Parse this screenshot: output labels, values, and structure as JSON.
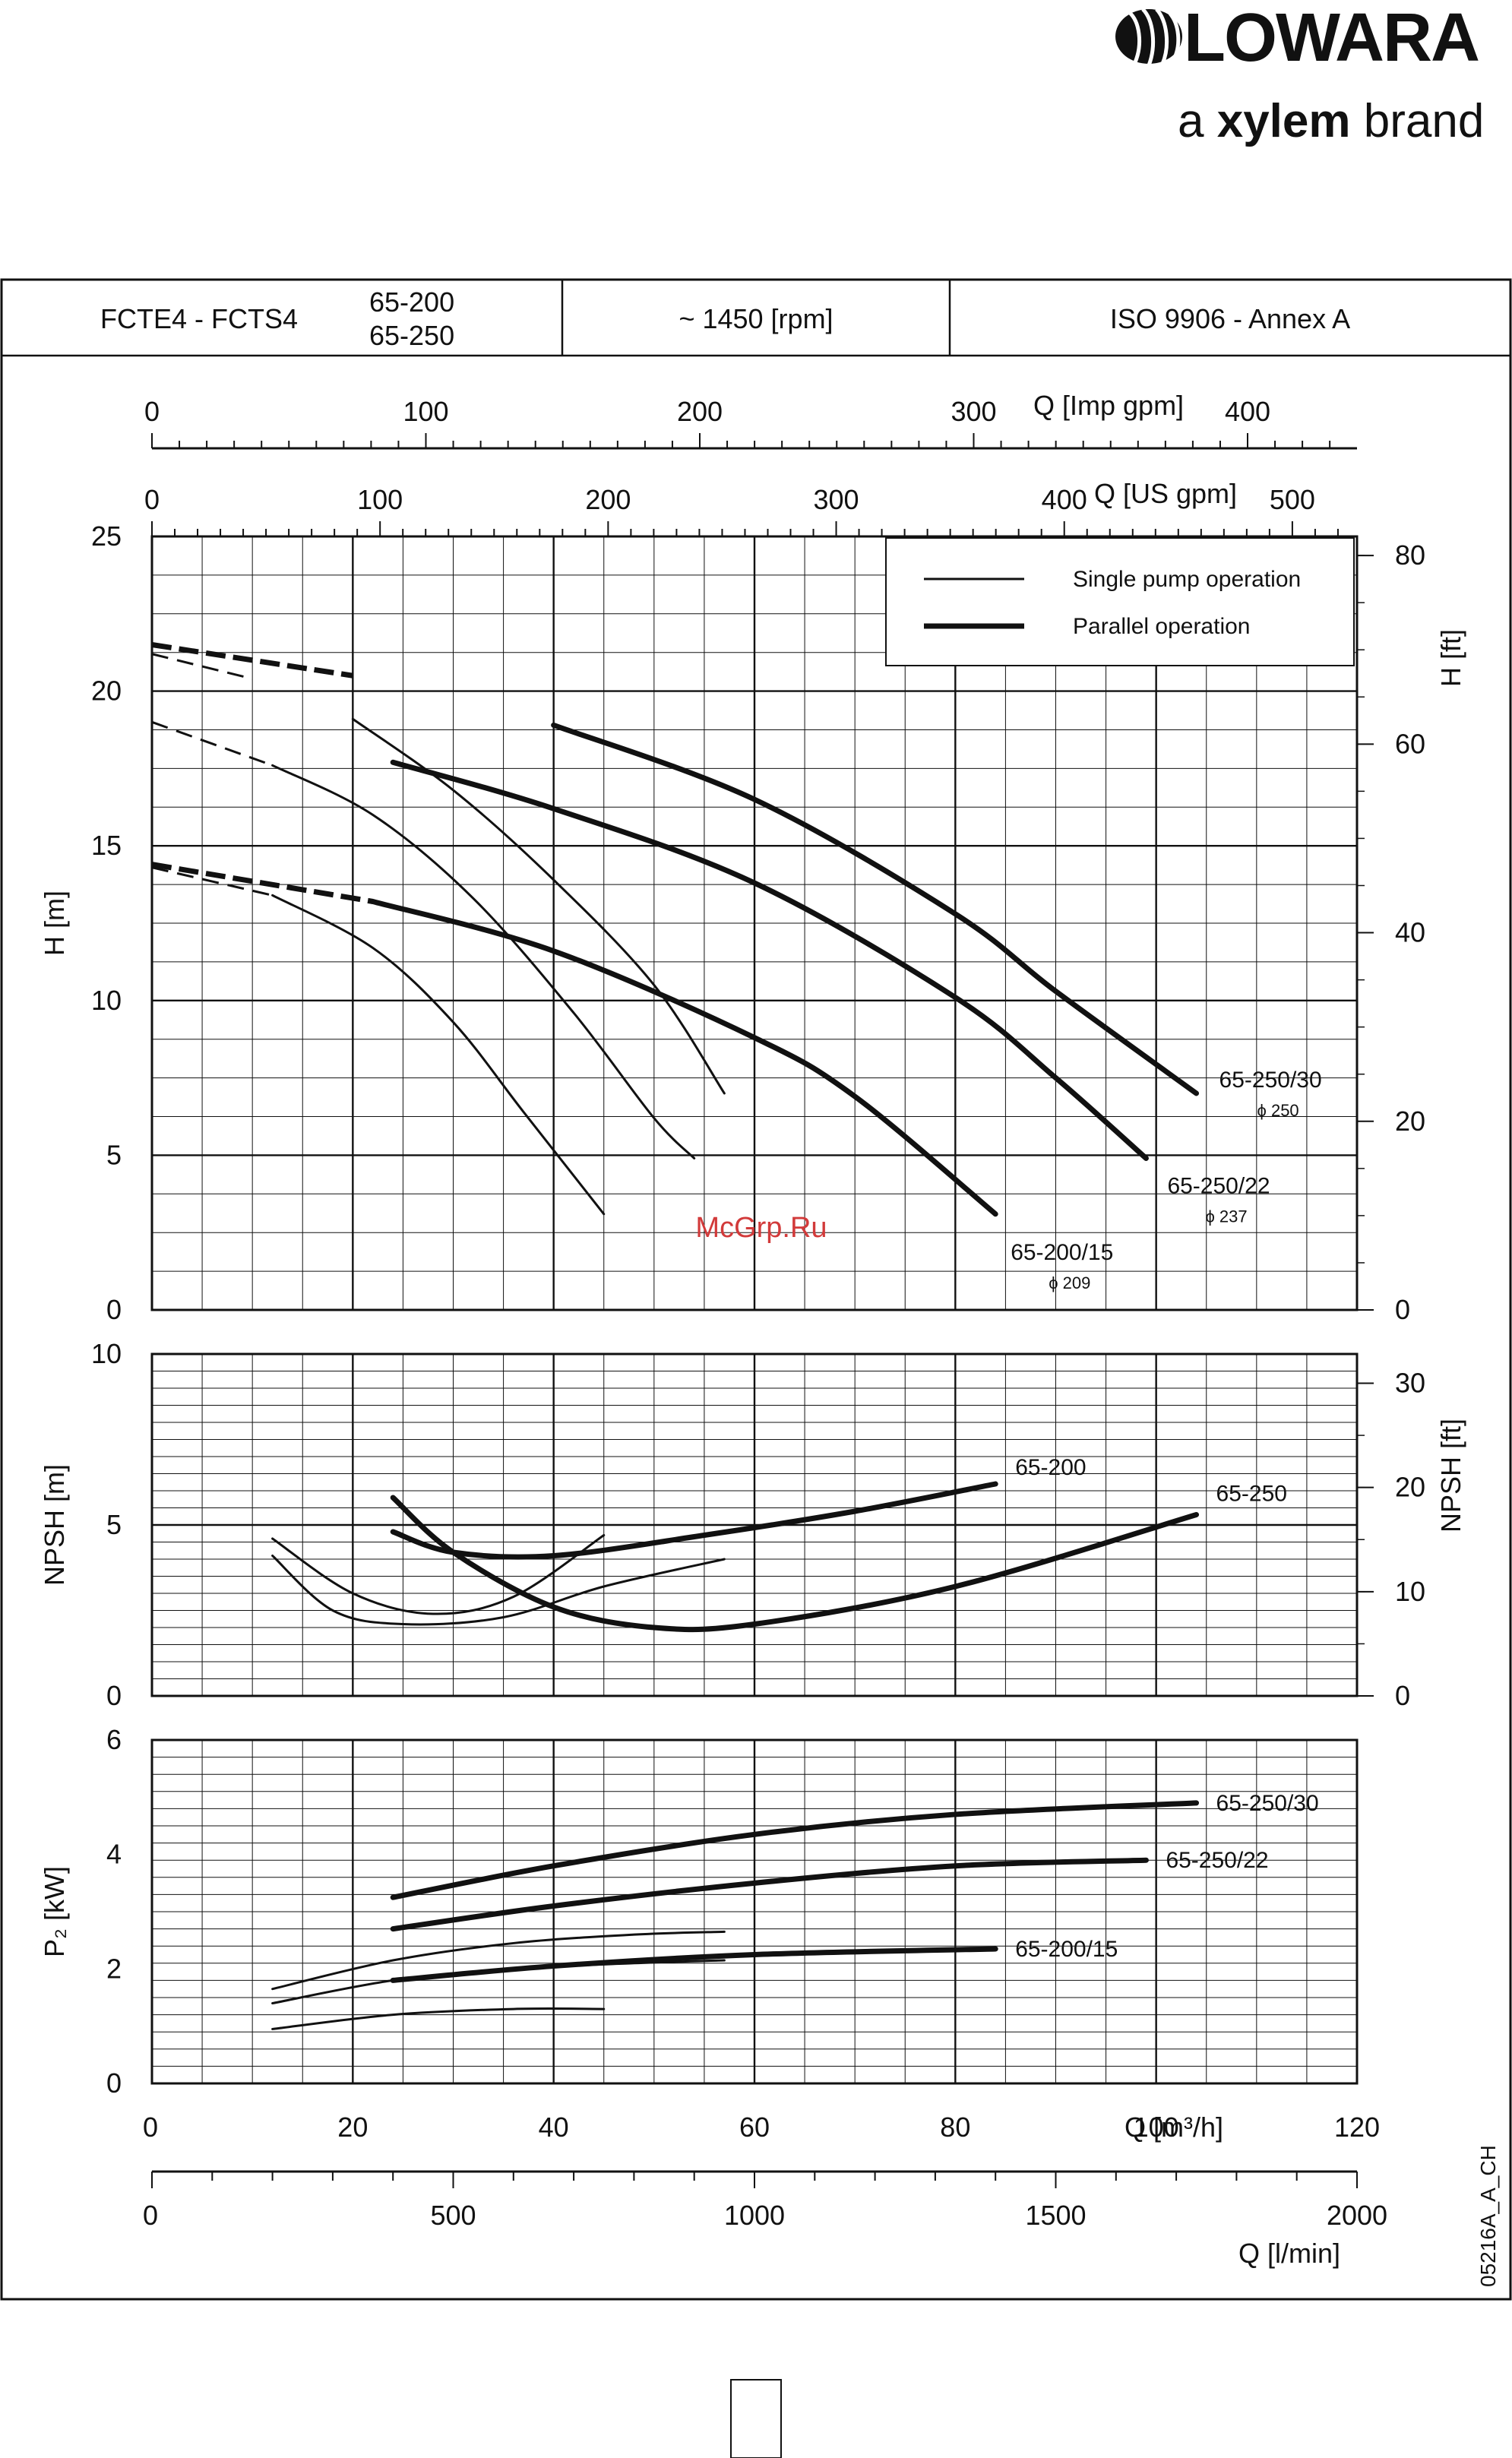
{
  "brand": {
    "name": "LOWARA",
    "tagline_pre": "a ",
    "tagline_bold": "xylem",
    "tagline_post": " brand"
  },
  "header": {
    "series": "FCTE4 - FCTS4",
    "model_1": "65-200",
    "model_2": "65-250",
    "speed": "~ 1450 [rpm]",
    "standard": "ISO 9906 - Annex A"
  },
  "legend": {
    "single": "Single pump operation",
    "parallel": "Parallel operation"
  },
  "watermark": "McGrp.Ru",
  "doc_code": "05216A_A_CH",
  "chart_data": [
    {
      "type": "line",
      "name": "head",
      "ylabel": "H [m]",
      "ylabel_right": "H [ft]",
      "xlim": [
        0,
        120
      ],
      "ylim": [
        0,
        25
      ],
      "yticks": [
        0,
        5,
        10,
        15,
        20,
        25
      ],
      "yticks_right": [
        0,
        20,
        40,
        60,
        80
      ],
      "top_axes": [
        {
          "label": "Q [Imp gpm]",
          "ticks": [
            0,
            100,
            200,
            300,
            400
          ]
        },
        {
          "label": "Q [US gpm]",
          "ticks": [
            0,
            100,
            200,
            300,
            400,
            500
          ]
        }
      ],
      "grid": true,
      "legend_position": "top-right",
      "series": [
        {
          "label": "65-250/30",
          "diameter": "ϕ 250",
          "mode": "single",
          "points": [
            [
              0,
              21.2
            ],
            [
              10,
              20.4
            ],
            [
              20,
              19.1
            ],
            [
              30,
              16.8
            ],
            [
              40,
              13.9
            ],
            [
              50,
              10.5
            ],
            [
              57,
              7
            ]
          ]
        },
        {
          "label": "65-250/22",
          "diameter": "ϕ 237",
          "mode": "single",
          "points": [
            [
              0,
              19
            ],
            [
              12,
              17.6
            ],
            [
              22,
              16
            ],
            [
              32,
              13.3
            ],
            [
              42,
              9.6
            ],
            [
              50,
              6.2
            ],
            [
              54,
              4.9
            ]
          ]
        },
        {
          "label": "65-200/15",
          "diameter": "ϕ 209",
          "mode": "single",
          "points": [
            [
              0,
              14.3
            ],
            [
              12,
              13.4
            ],
            [
              22,
              11.7
            ],
            [
              30,
              9.3
            ],
            [
              37,
              6.4
            ],
            [
              45,
              3.1
            ]
          ]
        },
        {
          "label": "65-250/30",
          "mode": "parallel",
          "points": [
            [
              0,
              21.5
            ],
            [
              20,
              20.5
            ],
            [
              40,
              18.9
            ],
            [
              60,
              16.5
            ],
            [
              80,
              12.8
            ],
            [
              90,
              10.3
            ],
            [
              104,
              7
            ]
          ]
        },
        {
          "label": "65-250/22",
          "mode": "parallel",
          "points": [
            [
              0,
              19.3
            ],
            [
              24,
              17.7
            ],
            [
              40,
              16.2
            ],
            [
              60,
              13.8
            ],
            [
              80,
              10.1
            ],
            [
              90,
              7.5
            ],
            [
              99,
              4.9
            ]
          ]
        },
        {
          "label": "65-200/15",
          "mode": "parallel",
          "points": [
            [
              0,
              14.4
            ],
            [
              22,
              13.2
            ],
            [
              40,
              11.6
            ],
            [
              60,
              8.8
            ],
            [
              70,
              6.9
            ],
            [
              84,
              3.1
            ]
          ]
        }
      ]
    },
    {
      "type": "line",
      "name": "npsh",
      "ylabel": "NPSH [m]",
      "ylabel_right": "NPSH [ft]",
      "xlim": [
        0,
        120
      ],
      "ylim": [
        0,
        10
      ],
      "yticks": [
        0,
        5,
        10
      ],
      "yticks_right": [
        0,
        10,
        20,
        30
      ],
      "grid": true,
      "series": [
        {
          "label": "65-200",
          "mode": "single",
          "points": [
            [
              12,
              4.6
            ],
            [
              20,
              3
            ],
            [
              28,
              2.4
            ],
            [
              36,
              2.9
            ],
            [
              45,
              4.7
            ]
          ]
        },
        {
          "label": "65-250",
          "mode": "single",
          "points": [
            [
              12,
              4.1
            ],
            [
              18,
              2.5
            ],
            [
              25,
              2.1
            ],
            [
              35,
              2.3
            ],
            [
              45,
              3.2
            ],
            [
              57,
              4
            ]
          ]
        },
        {
          "label": "65-200",
          "mode": "parallel",
          "points": [
            [
              24,
              4.8
            ],
            [
              30,
              4.2
            ],
            [
              40,
              4.1
            ],
            [
              55,
              4.7
            ],
            [
              70,
              5.4
            ],
            [
              84,
              6.2
            ]
          ]
        },
        {
          "label": "65-250",
          "mode": "parallel",
          "points": [
            [
              24,
              5.8
            ],
            [
              30,
              4.2
            ],
            [
              40,
              2.6
            ],
            [
              50,
              2
            ],
            [
              60,
              2.1
            ],
            [
              80,
              3.2
            ],
            [
              104,
              5.3
            ]
          ]
        }
      ]
    },
    {
      "type": "line",
      "name": "power",
      "ylabel": "P₂ [kW]",
      "xlabel": "Q [m³/h]",
      "xlabel_bottom": "Q [l/min]",
      "xlim": [
        0,
        120
      ],
      "ylim": [
        0,
        6
      ],
      "xticks": [
        0,
        20,
        40,
        60,
        80,
        100,
        120
      ],
      "yticks": [
        0,
        2,
        4,
        6
      ],
      "bottom_axis_ticks": [
        0,
        500,
        1000,
        1500,
        2000
      ],
      "grid": true,
      "series": [
        {
          "label": "65-250/30",
          "mode": "single",
          "points": [
            [
              12,
              1.65
            ],
            [
              24,
              2.15
            ],
            [
              36,
              2.45
            ],
            [
              48,
              2.6
            ],
            [
              57,
              2.65
            ]
          ]
        },
        {
          "label": "65-250/22",
          "mode": "single",
          "points": [
            [
              12,
              1.4
            ],
            [
              24,
              1.8
            ],
            [
              36,
              2
            ],
            [
              48,
              2.1
            ],
            [
              57,
              2.15
            ]
          ]
        },
        {
          "label": "65-200/15",
          "mode": "single",
          "points": [
            [
              12,
              0.95
            ],
            [
              24,
              1.2
            ],
            [
              36,
              1.3
            ],
            [
              45,
              1.3
            ]
          ]
        },
        {
          "label": "65-250/30",
          "mode": "parallel",
          "points": [
            [
              24,
              3.25
            ],
            [
              40,
              3.8
            ],
            [
              60,
              4.35
            ],
            [
              80,
              4.7
            ],
            [
              104,
              4.9
            ]
          ]
        },
        {
          "label": "65-250/22",
          "mode": "parallel",
          "points": [
            [
              24,
              2.7
            ],
            [
              40,
              3.1
            ],
            [
              60,
              3.5
            ],
            [
              80,
              3.8
            ],
            [
              99,
              3.9
            ]
          ]
        },
        {
          "label": "65-200/15",
          "mode": "parallel",
          "points": [
            [
              24,
              1.8
            ],
            [
              40,
              2.05
            ],
            [
              60,
              2.25
            ],
            [
              84,
              2.35
            ]
          ]
        }
      ]
    }
  ]
}
